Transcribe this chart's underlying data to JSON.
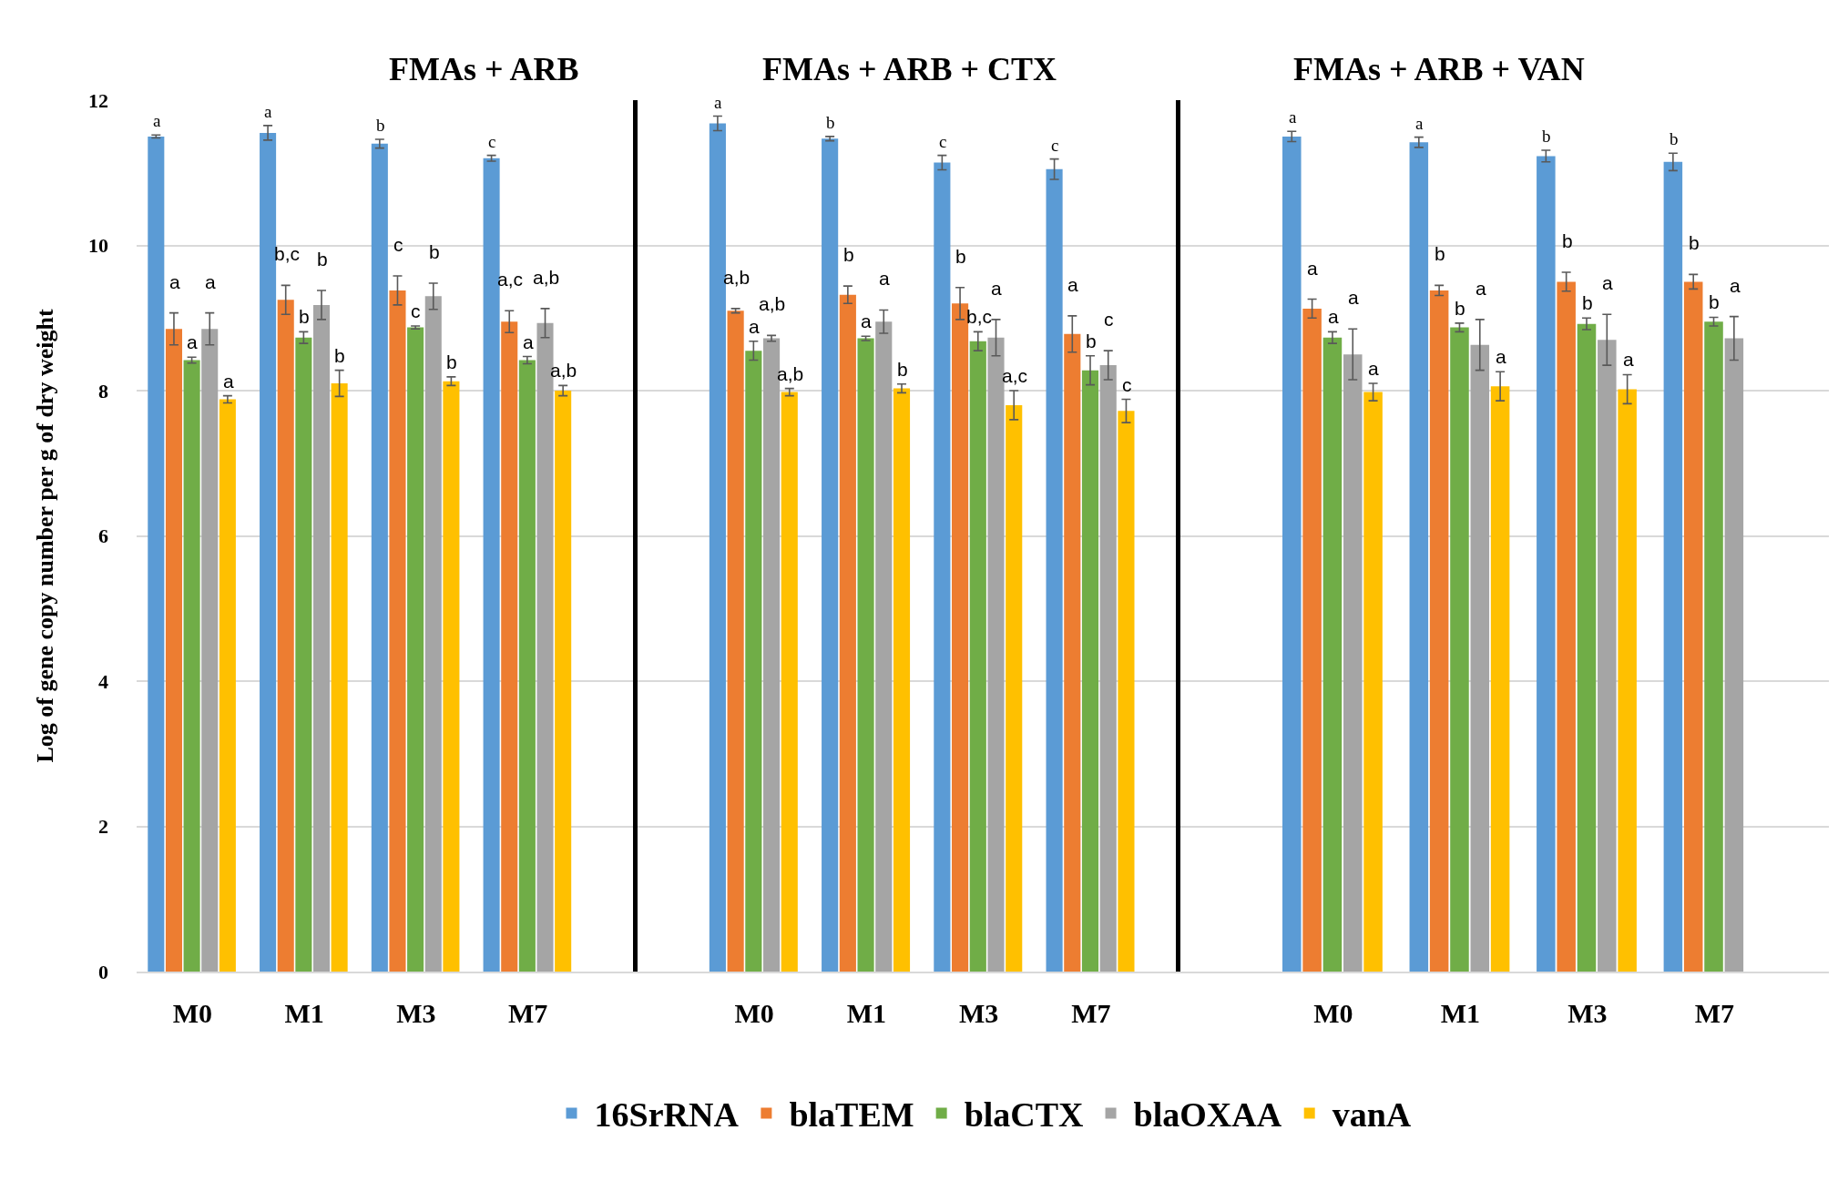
{
  "chart_data": [
    {
      "type": "bar",
      "title": "FMAs + ARB",
      "ylabel": "Log of gene copy number per g of dry weight",
      "categories": [
        "M0",
        "M1",
        "M3",
        "M7"
      ],
      "ylim": [
        0,
        12
      ],
      "yticks": [
        0,
        2,
        4,
        6,
        8,
        10,
        12
      ],
      "grid": "y",
      "legend": "bottom",
      "series": [
        {
          "name": "16SrRNA",
          "color": "#5b9bd5",
          "values": [
            11.5,
            11.55,
            11.4,
            11.2
          ],
          "errors": [
            0.02,
            0.1,
            0.06,
            0.04
          ],
          "value_labels": [
            "a",
            "a",
            "b",
            "c"
          ]
        },
        {
          "name": "blaTEM",
          "color": "#ed7d31",
          "values": [
            8.85,
            9.25,
            9.38,
            8.95
          ],
          "errors": [
            0.22,
            0.2,
            0.2,
            0.15
          ],
          "value_labels": [
            "a",
            "b,c",
            "c",
            "a,c"
          ]
        },
        {
          "name": "blaCTX",
          "color": "#70ad47",
          "values": [
            8.42,
            8.73,
            8.87,
            8.42
          ],
          "errors": [
            0.04,
            0.08,
            0.02,
            0.05
          ],
          "value_labels": [
            "a",
            "b",
            "c",
            "a"
          ]
        },
        {
          "name": "blaOXAA",
          "color": "#a5a5a5",
          "values": [
            8.85,
            9.18,
            9.3,
            8.93
          ],
          "errors": [
            0.22,
            0.2,
            0.18,
            0.2
          ],
          "value_labels": [
            "a",
            "b",
            "b",
            "a,b"
          ]
        },
        {
          "name": "vanA",
          "color": "#ffc000",
          "values": [
            7.88,
            8.1,
            8.13,
            8.0
          ],
          "errors": [
            0.05,
            0.18,
            0.06,
            0.07
          ],
          "value_labels": [
            "a",
            "b",
            "b",
            "a,b"
          ]
        }
      ]
    },
    {
      "type": "bar",
      "title": "FMAs + ARB + CTX",
      "categories": [
        "M0",
        "M1",
        "M3",
        "M7"
      ],
      "ylim": [
        0,
        12
      ],
      "yticks": [
        0,
        2,
        4,
        6,
        8,
        10,
        12
      ],
      "grid": "y",
      "tick_labels": "x",
      "series": [
        {
          "color": "#5b9bd5",
          "values": [
            11.68,
            11.47,
            11.14,
            11.05
          ],
          "errors": [
            0.1,
            0.03,
            0.1,
            0.14
          ],
          "value_labels": [
            "a",
            "b",
            "c",
            "c"
          ]
        },
        {
          "color": "#ed7d31",
          "values": [
            9.1,
            9.32,
            9.2,
            8.78
          ],
          "errors": [
            0.03,
            0.12,
            0.22,
            0.25
          ],
          "value_labels": [
            "a,b",
            "b",
            "b",
            "a"
          ]
        },
        {
          "color": "#70ad47",
          "values": [
            8.55,
            8.72,
            8.68,
            8.28
          ],
          "errors": [
            0.13,
            0.03,
            0.13,
            0.2
          ],
          "value_labels": [
            "a",
            "a",
            "b,c",
            "b"
          ]
        },
        {
          "color": "#a5a5a5",
          "values": [
            8.72,
            8.95,
            8.73,
            8.35
          ],
          "errors": [
            0.04,
            0.16,
            0.25,
            0.2
          ],
          "value_labels": [
            "a,b",
            "a",
            "a",
            "c"
          ]
        },
        {
          "color": "#ffc000",
          "values": [
            7.98,
            8.03,
            7.8,
            7.72
          ],
          "errors": [
            0.05,
            0.06,
            0.2,
            0.16
          ],
          "value_labels": [
            "a,b",
            "b",
            "a,c",
            "c"
          ]
        }
      ]
    },
    {
      "type": "bar",
      "title": "FMAs + ARB + VAN",
      "categories": [
        "M0",
        "M1",
        "M3",
        "M7"
      ],
      "ylim": [
        0,
        12
      ],
      "yticks": [
        0,
        2,
        4,
        6,
        8,
        10,
        12
      ],
      "grid": "y",
      "tick_labels": "x",
      "series": [
        {
          "color": "#5b9bd5",
          "values": [
            11.5,
            11.42,
            11.23,
            11.15
          ],
          "errors": [
            0.07,
            0.07,
            0.08,
            0.12
          ],
          "value_labels": [
            "a",
            "a",
            "b",
            "b"
          ]
        },
        {
          "color": "#ed7d31",
          "values": [
            9.13,
            9.38,
            9.5,
            9.5
          ],
          "errors": [
            0.13,
            0.07,
            0.13,
            0.1
          ],
          "value_labels": [
            "a",
            "b",
            "b",
            "b"
          ]
        },
        {
          "color": "#70ad47",
          "values": [
            8.73,
            8.87,
            8.92,
            8.95
          ],
          "errors": [
            0.08,
            0.06,
            0.08,
            0.06
          ],
          "value_labels": [
            "a",
            "b",
            "b",
            "b"
          ]
        },
        {
          "color": "#a5a5a5",
          "values": [
            8.5,
            8.63,
            8.7,
            8.72
          ],
          "errors": [
            0.35,
            0.35,
            0.35,
            0.3
          ],
          "value_labels": [
            "a",
            "a",
            "a",
            "a"
          ]
        },
        {
          "color": "#ffc000",
          "values": [
            7.98,
            8.06,
            8.02,
            null
          ],
          "errors": [
            0.12,
            0.2,
            0.2,
            null
          ],
          "value_labels": [
            "a",
            "a",
            "a",
            null
          ]
        }
      ]
    }
  ]
}
